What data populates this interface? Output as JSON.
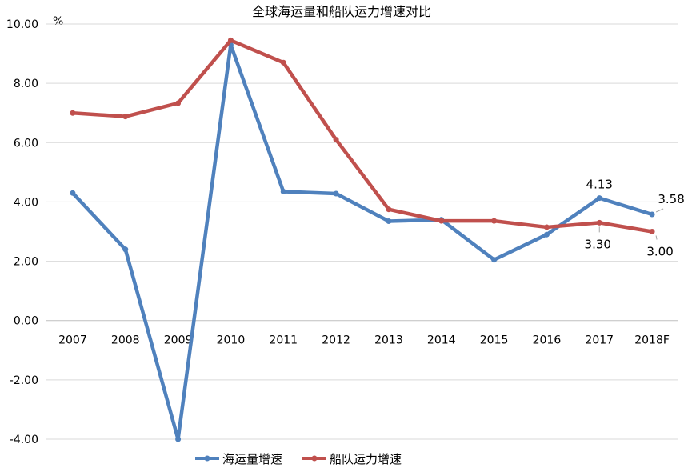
{
  "chart_data": {
    "type": "line",
    "title": "全球海运量和船队运力增速对比",
    "unit_label": "%",
    "categories": [
      "2007",
      "2008",
      "2009",
      "2010",
      "2011",
      "2012",
      "2013",
      "2014",
      "2015",
      "2016",
      "2017",
      "2018F"
    ],
    "ylim": [
      -4,
      10
    ],
    "yticks": [
      "-4.00",
      "-2.00",
      "0.00",
      "2.00",
      "4.00",
      "6.00",
      "8.00",
      "10.00"
    ],
    "ytick_values": [
      -4,
      -2,
      0,
      2,
      4,
      6,
      8,
      10
    ],
    "grid": true,
    "legend_position": "bottom",
    "series": [
      {
        "name": "海运量增速",
        "color": "#4F81BD",
        "values": [
          4.3,
          2.4,
          -4.0,
          9.3,
          4.35,
          4.28,
          3.35,
          3.4,
          2.05,
          2.9,
          4.13,
          3.58
        ]
      },
      {
        "name": "船队运力增速",
        "color": "#C0504D",
        "values": [
          7.0,
          6.88,
          7.33,
          9.45,
          8.7,
          6.1,
          3.75,
          3.36,
          3.36,
          3.15,
          3.3,
          3.0
        ]
      }
    ],
    "annotations": [
      {
        "series": 0,
        "index": 10,
        "text": "4.13"
      },
      {
        "series": 0,
        "index": 11,
        "text": "3.58"
      },
      {
        "series": 1,
        "index": 10,
        "text": "3.30"
      },
      {
        "series": 1,
        "index": 11,
        "text": "3.00"
      }
    ]
  }
}
